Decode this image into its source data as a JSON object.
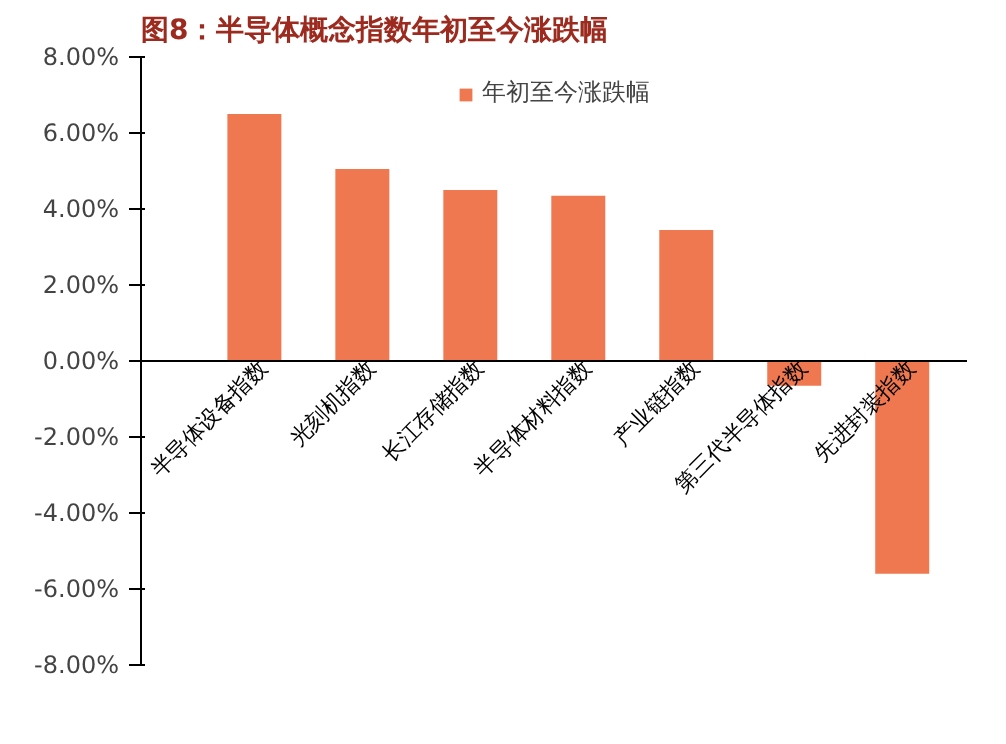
{
  "chart_data": {
    "type": "bar",
    "title": "图8：半导体概念指数年初至今涨跌幅",
    "categories": [
      "半导体设备指数",
      "光刻机指数",
      "长江存储指数",
      "半导体材料指数",
      "产业链指数",
      "第三代半导体指数",
      "先进封装指数"
    ],
    "series": [
      {
        "name": "年初至今涨跌幅",
        "color": "#f07850",
        "values": [
          6.5,
          5.05,
          4.5,
          4.35,
          3.45,
          -0.65,
          -5.6
        ]
      }
    ],
    "ylim": [
      -8,
      8
    ],
    "yticks": [
      {
        "value": -8,
        "label": "-8.00%"
      },
      {
        "value": -6,
        "label": "-6.00%"
      },
      {
        "value": -4,
        "label": "-4.00%"
      },
      {
        "value": -2,
        "label": "-2.00%"
      },
      {
        "value": 0,
        "label": "0.00%"
      },
      {
        "value": 2,
        "label": "2.00%"
      },
      {
        "value": 4,
        "label": "4.00%"
      },
      {
        "value": 6,
        "label": "6.00%"
      },
      {
        "value": 8,
        "label": "8.00%"
      }
    ],
    "grid": false,
    "legend": "top"
  }
}
